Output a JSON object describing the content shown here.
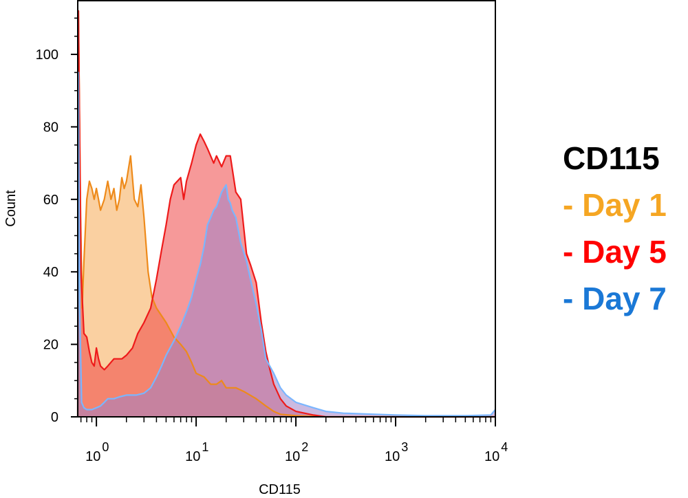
{
  "chart_data": {
    "type": "histogram",
    "title": "CD115",
    "xlabel": "CD115",
    "ylabel": "Count",
    "xscale": "log",
    "xlim": [
      0.65,
      10000
    ],
    "ylim": [
      0,
      115
    ],
    "yticks": [
      0,
      20,
      40,
      60,
      80,
      100
    ],
    "xticks": [
      {
        "value": 1,
        "base": "10",
        "exp": "0"
      },
      {
        "value": 10,
        "base": "10",
        "exp": "1"
      },
      {
        "value": 100,
        "base": "10",
        "exp": "2"
      },
      {
        "value": 1000,
        "base": "10",
        "exp": "3"
      },
      {
        "value": 10000,
        "base": "10",
        "exp": "4"
      }
    ],
    "legend_position": "right",
    "series": [
      {
        "name": "Day 1",
        "color": "#f5a623",
        "stroke": "#ee8a1a",
        "fill": "rgba(246,170,84,0.55)",
        "points": [
          [
            0.65,
            0
          ],
          [
            0.66,
            112
          ],
          [
            0.69,
            60
          ],
          [
            0.72,
            30
          ],
          [
            0.75,
            43
          ],
          [
            0.8,
            60
          ],
          [
            0.85,
            65
          ],
          [
            0.9,
            63
          ],
          [
            0.95,
            60
          ],
          [
            1.0,
            63
          ],
          [
            1.05,
            60
          ],
          [
            1.1,
            57
          ],
          [
            1.2,
            60
          ],
          [
            1.3,
            65
          ],
          [
            1.4,
            60
          ],
          [
            1.5,
            63
          ],
          [
            1.6,
            57
          ],
          [
            1.7,
            60
          ],
          [
            1.8,
            66
          ],
          [
            1.9,
            63
          ],
          [
            2.0,
            65
          ],
          [
            2.2,
            72
          ],
          [
            2.4,
            60
          ],
          [
            2.6,
            58
          ],
          [
            2.8,
            64
          ],
          [
            3.0,
            55
          ],
          [
            3.3,
            40
          ],
          [
            3.6,
            33
          ],
          [
            4.0,
            30
          ],
          [
            5.0,
            26
          ],
          [
            6.0,
            22
          ],
          [
            7.0,
            20
          ],
          [
            8.0,
            18
          ],
          [
            9.0,
            15
          ],
          [
            10.0,
            12
          ],
          [
            12.0,
            11
          ],
          [
            14.0,
            9
          ],
          [
            16.0,
            9
          ],
          [
            18.0,
            10
          ],
          [
            20.0,
            8
          ],
          [
            25.0,
            8
          ],
          [
            30.0,
            7
          ],
          [
            40.0,
            5
          ],
          [
            50.0,
            3
          ],
          [
            60.0,
            1.5
          ],
          [
            70.0,
            0.7
          ],
          [
            100.0,
            0.3
          ],
          [
            200.0,
            0
          ],
          [
            10000,
            0
          ]
        ]
      },
      {
        "name": "Day 5",
        "color": "#ff0000",
        "stroke": "#ee1a1a",
        "fill": "rgba(238,70,70,0.55)",
        "points": [
          [
            0.65,
            0
          ],
          [
            0.66,
            112
          ],
          [
            0.7,
            40
          ],
          [
            0.75,
            23
          ],
          [
            0.8,
            22
          ],
          [
            0.85,
            18
          ],
          [
            0.9,
            15
          ],
          [
            0.95,
            14
          ],
          [
            1.0,
            19
          ],
          [
            1.05,
            16
          ],
          [
            1.1,
            14
          ],
          [
            1.2,
            13
          ],
          [
            1.3,
            14
          ],
          [
            1.5,
            16
          ],
          [
            1.8,
            16
          ],
          [
            2.0,
            17
          ],
          [
            2.3,
            19
          ],
          [
            2.6,
            23
          ],
          [
            3.0,
            26
          ],
          [
            3.5,
            30
          ],
          [
            4.0,
            38
          ],
          [
            4.5,
            46
          ],
          [
            5.0,
            53
          ],
          [
            5.5,
            60
          ],
          [
            6.0,
            64
          ],
          [
            7.0,
            66
          ],
          [
            7.5,
            60
          ],
          [
            8.0,
            65
          ],
          [
            9.0,
            70
          ],
          [
            10.0,
            75
          ],
          [
            11.0,
            78
          ],
          [
            12.0,
            76
          ],
          [
            13.0,
            74
          ],
          [
            15.0,
            70
          ],
          [
            16.0,
            72
          ],
          [
            18.0,
            69
          ],
          [
            20.0,
            72
          ],
          [
            22.0,
            72
          ],
          [
            25.0,
            62
          ],
          [
            28.0,
            60
          ],
          [
            32.0,
            45
          ],
          [
            35.0,
            42
          ],
          [
            40.0,
            37
          ],
          [
            45.0,
            26
          ],
          [
            50.0,
            18
          ],
          [
            55.0,
            13
          ],
          [
            60.0,
            9
          ],
          [
            70.0,
            5
          ],
          [
            80.0,
            3
          ],
          [
            100.0,
            1.5
          ],
          [
            150.0,
            0.5
          ],
          [
            200.0,
            0
          ],
          [
            10000,
            0
          ]
        ]
      },
      {
        "name": "Day 7",
        "color": "#1a78d6",
        "stroke": "#7ab6ff",
        "fill": "rgba(160,130,200,0.55)",
        "points": [
          [
            0.65,
            0
          ],
          [
            0.66,
            95
          ],
          [
            0.68,
            30
          ],
          [
            0.71,
            4
          ],
          [
            0.75,
            2.5
          ],
          [
            0.8,
            2
          ],
          [
            0.9,
            2
          ],
          [
            1.0,
            2.5
          ],
          [
            1.1,
            3
          ],
          [
            1.2,
            4
          ],
          [
            1.3,
            5
          ],
          [
            1.5,
            5
          ],
          [
            1.7,
            5.5
          ],
          [
            2.0,
            6
          ],
          [
            2.5,
            6
          ],
          [
            3.0,
            6.5
          ],
          [
            3.5,
            8
          ],
          [
            4.0,
            11
          ],
          [
            4.5,
            14
          ],
          [
            5.0,
            17
          ],
          [
            6.0,
            21
          ],
          [
            7.0,
            25
          ],
          [
            8.0,
            29
          ],
          [
            9.0,
            33
          ],
          [
            10.0,
            38
          ],
          [
            11.0,
            42
          ],
          [
            12.0,
            47
          ],
          [
            13.0,
            53
          ],
          [
            14.0,
            55
          ],
          [
            15.0,
            57
          ],
          [
            16.0,
            58
          ],
          [
            17.0,
            60
          ],
          [
            18.0,
            62
          ],
          [
            20.0,
            64
          ],
          [
            21.0,
            60
          ],
          [
            22.0,
            59
          ],
          [
            23.0,
            57
          ],
          [
            25.0,
            55
          ],
          [
            28.0,
            48
          ],
          [
            32.0,
            43
          ],
          [
            35.0,
            38
          ],
          [
            40.0,
            31
          ],
          [
            45.0,
            24
          ],
          [
            50.0,
            16
          ],
          [
            60.0,
            12
          ],
          [
            70.0,
            8
          ],
          [
            80.0,
            6
          ],
          [
            100.0,
            4
          ],
          [
            150.0,
            2.5
          ],
          [
            200.0,
            1.5
          ],
          [
            300.0,
            1
          ],
          [
            500.0,
            0.8
          ],
          [
            1000.0,
            0.5
          ],
          [
            2000.0,
            0.3
          ],
          [
            5000.0,
            0.3
          ],
          [
            9000.0,
            0.5
          ],
          [
            10000,
            2
          ]
        ]
      }
    ]
  }
}
